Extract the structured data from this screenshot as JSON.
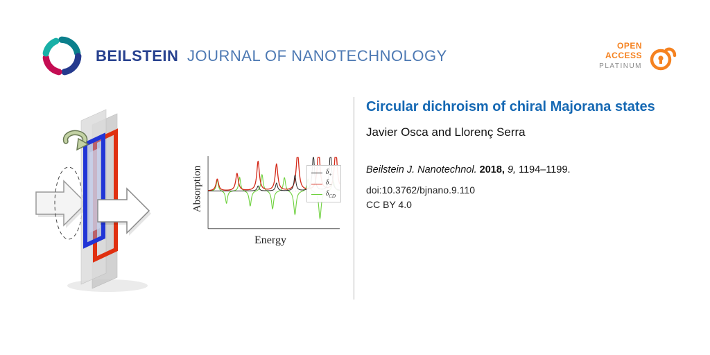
{
  "header": {
    "journal_bold": "BEILSTEIN",
    "journal_rest": "JOURNAL OF NANOTECHNOLOGY",
    "open_access": {
      "open": "OPEN",
      "access": "ACCESS",
      "platinum": "PLATINUM"
    }
  },
  "article": {
    "title": "Circular dichroism of chiral Majorana states",
    "authors": "Javier Osca and Llorenç Serra",
    "citation": {
      "journal": "Beilstein J. Nanotechnol.",
      "year": "2018,",
      "volume": "9,",
      "pages": "1194–1199."
    },
    "doi": "doi:10.3762/bjnano.9.110",
    "license": "CC BY 4.0"
  },
  "colors": {
    "beilstein_navy": "#27418f",
    "beilstein_steel_blue": "#4d79b3",
    "title_blue": "#1568b3",
    "open_access_orange": "#f58220",
    "platinum_gray": "#8a8a8a",
    "figure_blue_frame": "#2135d6",
    "figure_red_frame": "#e03010"
  },
  "chart_data": {
    "type": "line",
    "title": "",
    "xlabel": "Energy",
    "ylabel": "Absorption",
    "x_range": [
      0,
      1
    ],
    "y_range": [
      -1.35,
      1.25
    ],
    "grid": false,
    "legend_position": "upper right",
    "legend": [
      {
        "sym": "δ",
        "sub": "+",
        "color": "#2b2b2b"
      },
      {
        "sym": "δ",
        "sub": "−",
        "color": "#d42a1a"
      },
      {
        "sym": "δ",
        "sub": "CD",
        "color": "#6ed13e"
      }
    ],
    "series": [
      {
        "name": "delta_CD",
        "color": "#6ed13e",
        "width": 1.1,
        "peaks": [
          [
            0.07,
            0.4,
            0.009
          ],
          [
            0.14,
            -0.45,
            0.009
          ],
          [
            0.24,
            0.5,
            0.009
          ],
          [
            0.32,
            -0.55,
            0.01
          ],
          [
            0.41,
            0.6,
            0.01
          ],
          [
            0.49,
            -0.65,
            0.01
          ],
          [
            0.58,
            0.5,
            0.01
          ],
          [
            0.66,
            -0.85,
            0.011
          ],
          [
            0.76,
            0.45,
            0.011
          ],
          [
            0.85,
            -1.0,
            0.011
          ],
          [
            0.95,
            0.4,
            0.011
          ]
        ]
      },
      {
        "name": "delta_minus",
        "color": "#d42a1a",
        "width": 1.3,
        "peaks": [
          [
            0.07,
            0.42,
            0.012
          ],
          [
            0.22,
            0.62,
            0.012
          ],
          [
            0.38,
            1.05,
            0.012
          ],
          [
            0.52,
            0.95,
            0.012
          ],
          [
            0.68,
            1.35,
            0.013
          ],
          [
            0.84,
            1.45,
            0.013
          ],
          [
            0.97,
            1.5,
            0.013
          ]
        ]
      },
      {
        "name": "delta_plus",
        "color": "#2b2b2b",
        "width": 1.0,
        "peaks": [
          [
            0.38,
            0.18,
            0.009
          ],
          [
            0.52,
            0.28,
            0.009
          ],
          [
            0.66,
            0.55,
            0.009
          ],
          [
            0.8,
            1.3,
            0.01
          ],
          [
            0.93,
            1.45,
            0.01
          ]
        ]
      }
    ]
  }
}
